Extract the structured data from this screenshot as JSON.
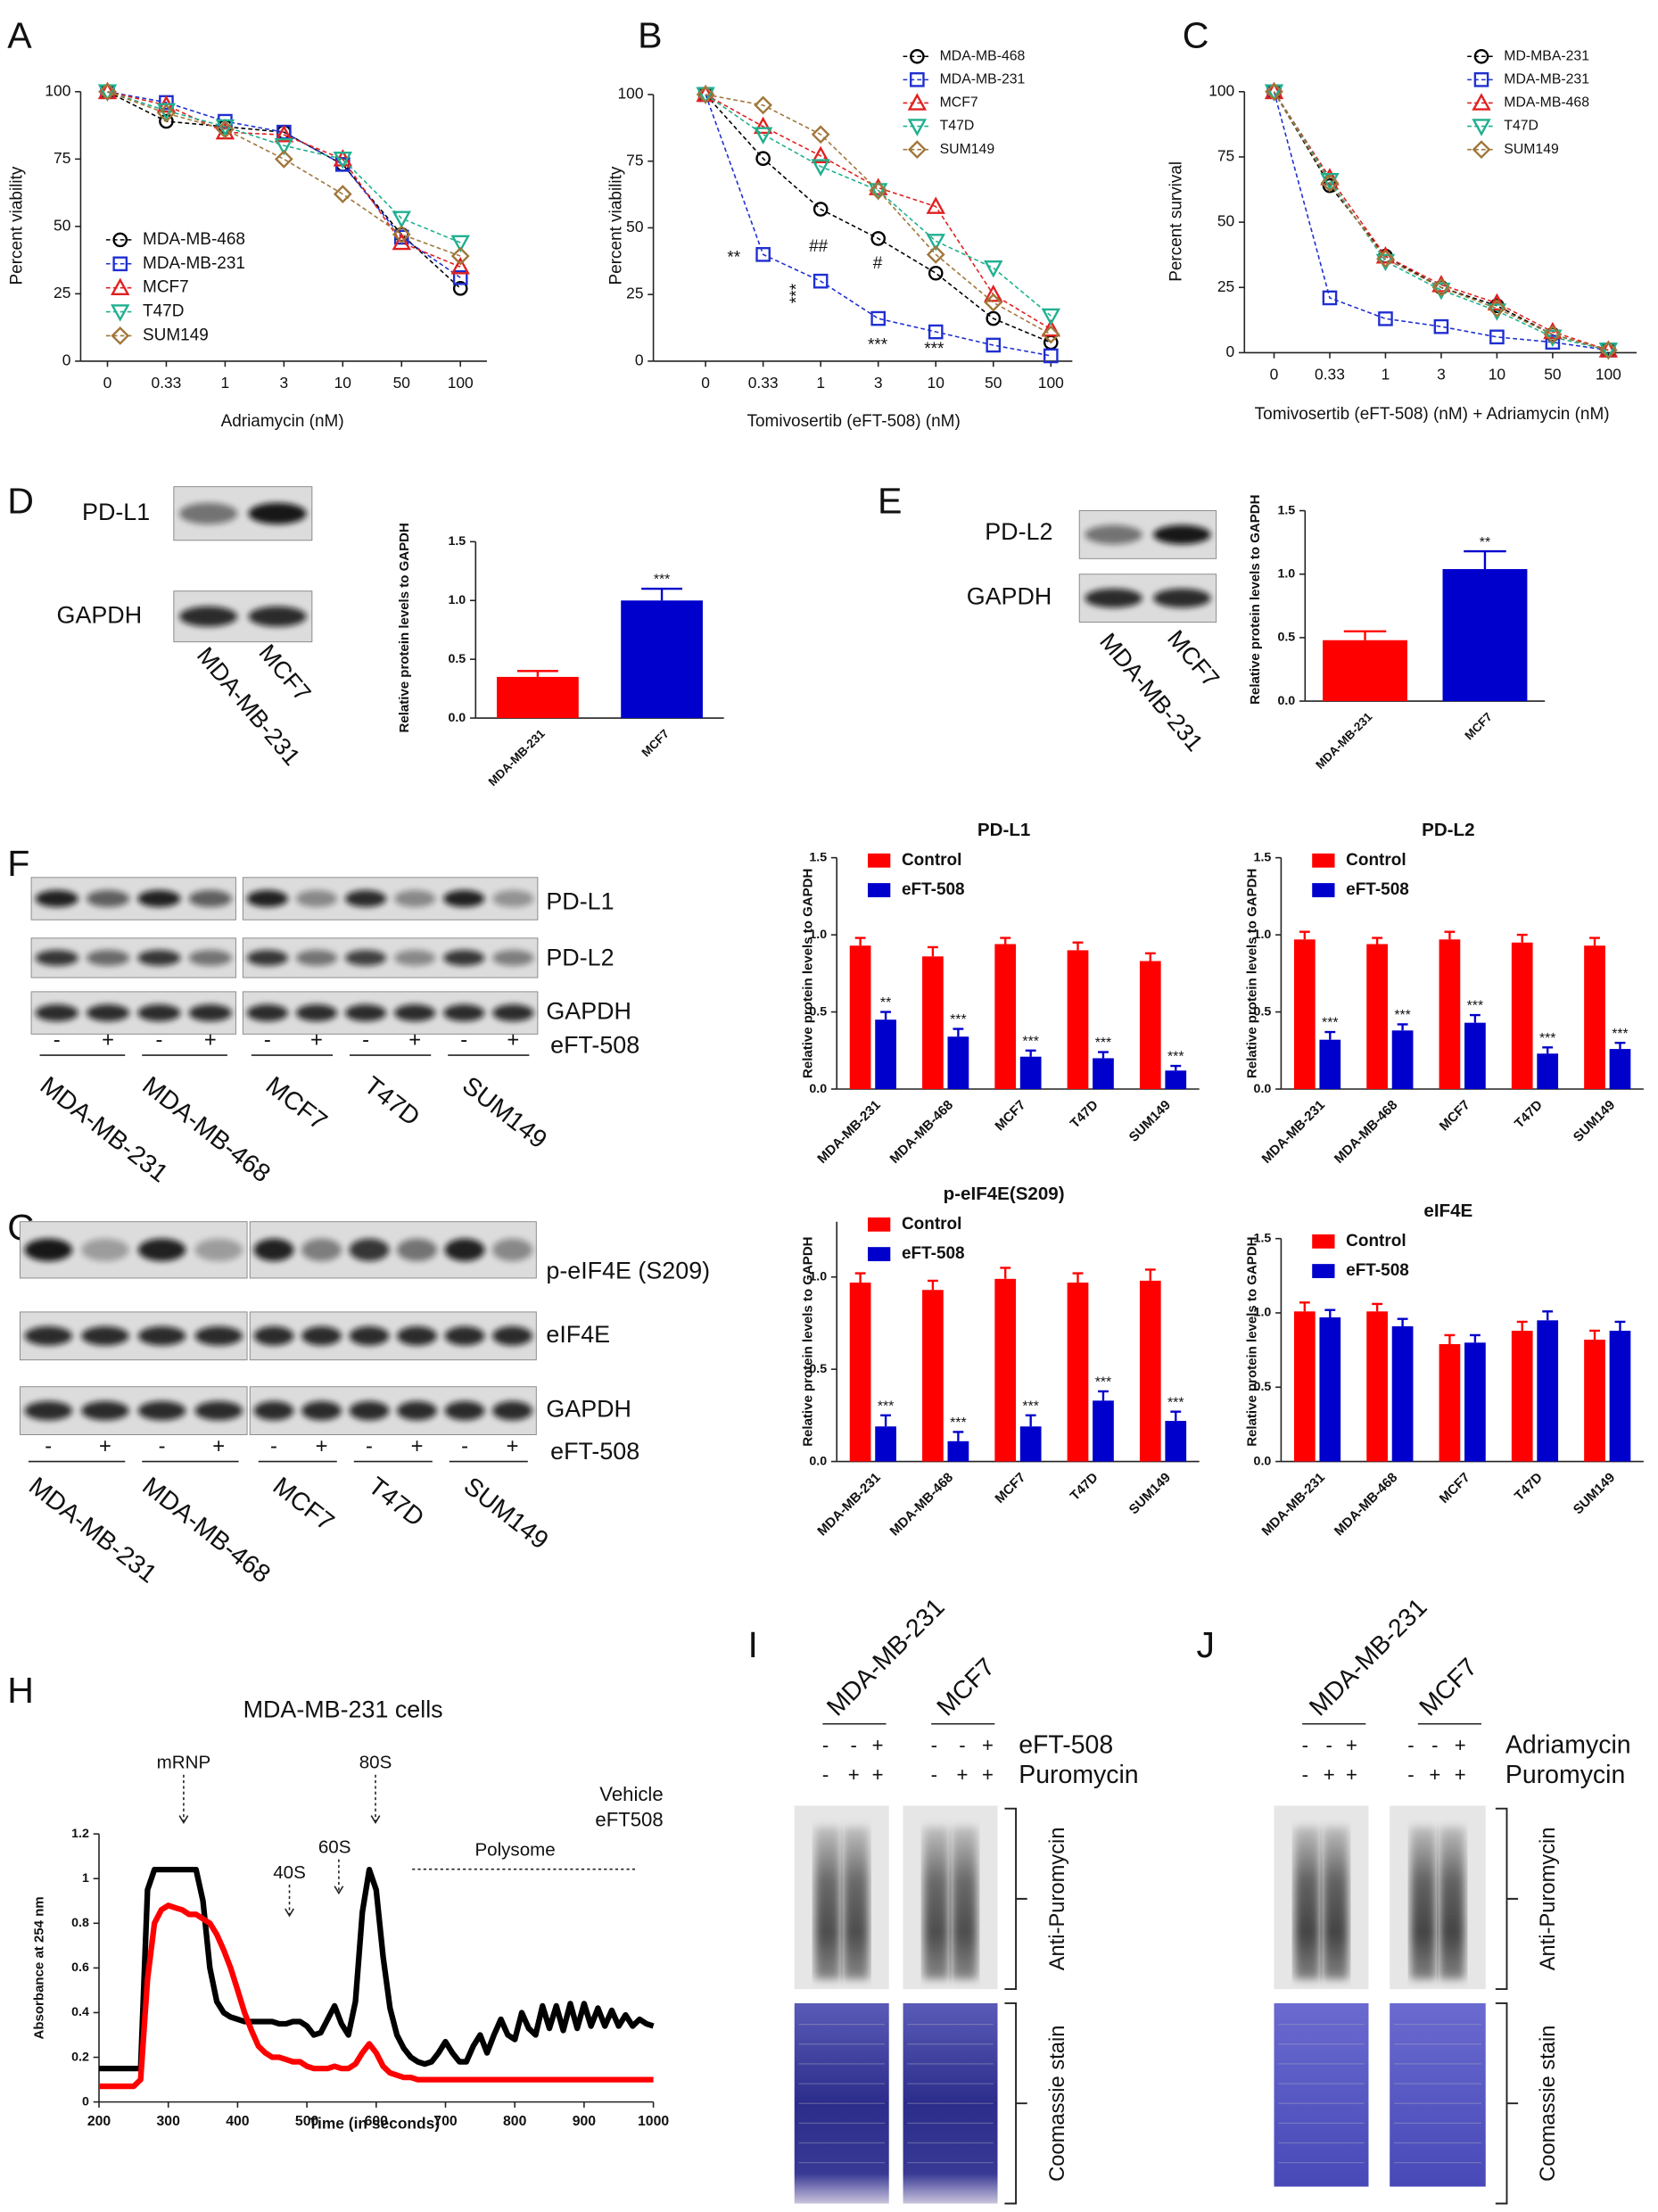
{
  "panel_labels": [
    "A",
    "B",
    "C",
    "D",
    "E",
    "F",
    "G",
    "H",
    "I",
    "J"
  ],
  "chart_data": [
    {
      "type": "line",
      "ylabel": "Percent viability",
      "xlabel": "Adriamycin (nM)",
      "categories": [
        "0",
        "0.33",
        "1",
        "3",
        "10",
        "50",
        "100"
      ],
      "ylim": [
        0,
        100
      ],
      "yticks": [
        0,
        25,
        50,
        75,
        100
      ],
      "series": [
        {
          "name": "MDA-MB-468",
          "color": "#000000",
          "values": [
            100,
            89,
            87,
            85,
            73,
            47,
            27
          ]
        },
        {
          "name": "MDA-MB-231",
          "color": "#1f2fd0",
          "values": [
            100,
            96,
            89,
            85,
            73,
            46,
            31
          ]
        },
        {
          "name": "MCF7",
          "color": "#e02020",
          "values": [
            100,
            95,
            85,
            84,
            75,
            44,
            35
          ]
        },
        {
          "name": "T47D",
          "color": "#1fb08f",
          "values": [
            100,
            93,
            87,
            80,
            75,
            53,
            44
          ]
        },
        {
          "name": "SUM149",
          "color": "#a0763a",
          "values": [
            100,
            92,
            86,
            75,
            62,
            47,
            39
          ]
        }
      ]
    },
    {
      "type": "line",
      "ylabel": "Percent viability",
      "xlabel": "Tomivosertib (eFT-508) (nM)",
      "categories": [
        "0",
        "0.33",
        "1",
        "3",
        "10",
        "50",
        "100"
      ],
      "ylim": [
        0,
        100
      ],
      "yticks": [
        0,
        25,
        50,
        75,
        100
      ],
      "series": [
        {
          "name": "MDA-MB-468",
          "color": "#000000",
          "values": [
            100,
            76,
            57,
            46,
            33,
            16,
            7
          ]
        },
        {
          "name": "MDA-MB-231",
          "color": "#1f2fd0",
          "values": [
            100,
            40,
            30,
            16,
            11,
            6,
            2
          ]
        },
        {
          "name": "MCF7",
          "color": "#e02020",
          "values": [
            100,
            88,
            77,
            65,
            58,
            25,
            12
          ]
        },
        {
          "name": "T47D",
          "color": "#1fb08f",
          "values": [
            100,
            85,
            73,
            64,
            45,
            35,
            17
          ]
        },
        {
          "name": "SUM149",
          "color": "#a0763a",
          "values": [
            100,
            96,
            85,
            64,
            40,
            22,
            10
          ]
        }
      ],
      "annotations": [
        "**",
        "##",
        "#",
        "***",
        "***",
        "***"
      ]
    },
    {
      "type": "line",
      "ylabel": "Percent survival",
      "xlabel": "Tomivosertib (eFT-508) (nM) +  Adriamycin (nM)",
      "categories": [
        "0",
        "0.33",
        "1",
        "3",
        "10",
        "50",
        "100"
      ],
      "ylim": [
        0,
        100
      ],
      "yticks": [
        0,
        25,
        50,
        75,
        100
      ],
      "series": [
        {
          "name": "MD-MBA-231",
          "color": "#000000",
          "values": [
            100,
            64,
            37,
            25,
            18,
            7,
            1
          ]
        },
        {
          "name": "MDA-MB-231",
          "color": "#1f2fd0",
          "values": [
            100,
            21,
            13,
            10,
            6,
            4,
            1
          ]
        },
        {
          "name": "MDA-MB-468",
          "color": "#e02020",
          "values": [
            100,
            67,
            37,
            26,
            19,
            8,
            1
          ]
        },
        {
          "name": "T47D",
          "color": "#1fb08f",
          "values": [
            100,
            66,
            35,
            24,
            16,
            6,
            1
          ]
        },
        {
          "name": "SUM149",
          "color": "#a0763a",
          "values": [
            100,
            65,
            36,
            25,
            17,
            7,
            1
          ]
        }
      ]
    },
    {
      "type": "bar",
      "ylabel": "Relative protein levels to GAPDH",
      "categories": [
        "MDA-MB-231",
        "MCF7"
      ],
      "values": [
        0.35,
        1.0
      ],
      "errors": [
        0.05,
        0.1
      ],
      "colors": [
        "#ff0000",
        "#0000cc"
      ],
      "ylim": [
        0,
        1.5
      ],
      "yticks": [
        {
          "value": 0,
          "label": "0.0"
        },
        0.5,
        {
          "value": 1,
          "label": "1.0"
        },
        1.5
      ],
      "annotations": [
        "***"
      ]
    },
    {
      "type": "bar",
      "ylabel": "Relative protein levels to GAPDH",
      "categories": [
        "MDA-MB-231",
        "MCF7"
      ],
      "values": [
        0.48,
        1.04
      ],
      "errors": [
        0.07,
        0.14
      ],
      "colors": [
        "#ff0000",
        "#0000cc"
      ],
      "ylim": [
        0,
        1.5
      ],
      "yticks": [
        {
          "value": 0,
          "label": "0.0"
        },
        0.5,
        {
          "value": 1,
          "label": "1.0"
        },
        1.5
      ],
      "annotations": [
        "**"
      ]
    },
    {
      "type": "bar",
      "title": "PD-L1",
      "ylabel": "Relative protein levels to GAPDH",
      "categories": [
        "MDA-MB-231",
        "MDA-MB-468",
        "MCF7",
        "T47D",
        "SUM149"
      ],
      "ylim": [
        0,
        1.5
      ],
      "yticks": [
        {
          "value": 0,
          "label": "0.0"
        },
        0.5,
        {
          "value": 1,
          "label": "1.0"
        },
        1.5
      ],
      "series": [
        {
          "name": "Control",
          "color": "#ff0000",
          "values": [
            0.93,
            0.86,
            0.94,
            0.9,
            0.83
          ],
          "errors": [
            0.05,
            0.06,
            0.04,
            0.05,
            0.05
          ]
        },
        {
          "name": "eFT-508",
          "color": "#0000cc",
          "values": [
            0.45,
            0.34,
            0.21,
            0.2,
            0.12
          ],
          "errors": [
            0.05,
            0.05,
            0.04,
            0.04,
            0.03
          ]
        }
      ],
      "annotations": [
        "**",
        "***",
        "***",
        "***",
        "***"
      ]
    },
    {
      "type": "bar",
      "title": "PD-L2",
      "ylabel": "Relative protein levels to GAPDH",
      "categories": [
        "MDA-MB-231",
        "MDA-MB-468",
        "MCF7",
        "T47D",
        "SUM149"
      ],
      "ylim": [
        0,
        1.5
      ],
      "yticks": [
        {
          "value": 0,
          "label": "0.0"
        },
        0.5,
        {
          "value": 1,
          "label": "1.0"
        },
        1.5
      ],
      "series": [
        {
          "name": "Control",
          "color": "#ff0000",
          "values": [
            0.97,
            0.94,
            0.97,
            0.95,
            0.93
          ],
          "errors": [
            0.05,
            0.04,
            0.05,
            0.05,
            0.05
          ]
        },
        {
          "name": "eFT-508",
          "color": "#0000cc",
          "values": [
            0.32,
            0.38,
            0.43,
            0.23,
            0.26
          ],
          "errors": [
            0.05,
            0.04,
            0.05,
            0.04,
            0.04
          ]
        }
      ],
      "annotations": [
        "***",
        "***",
        "***",
        "***",
        "***"
      ]
    },
    {
      "type": "bar",
      "title": "p-eIF4E(S209)",
      "ylabel": "Relative protein levels to GAPDH",
      "categories": [
        "MDA-MB-231",
        "MDA-MB-468",
        "MCF7",
        "T47D",
        "SUM149"
      ],
      "ylim": [
        0,
        1.3
      ],
      "yticks": [
        {
          "value": 0,
          "label": "0.0"
        },
        0.5,
        {
          "value": 1,
          "label": "1.0"
        }
      ],
      "series": [
        {
          "name": "Control",
          "color": "#ff0000",
          "values": [
            0.97,
            0.93,
            0.99,
            0.97,
            0.98
          ],
          "errors": [
            0.05,
            0.05,
            0.06,
            0.05,
            0.06
          ]
        },
        {
          "name": "eFT-508",
          "color": "#0000cc",
          "values": [
            0.19,
            0.11,
            0.19,
            0.33,
            0.22
          ],
          "errors": [
            0.06,
            0.05,
            0.06,
            0.05,
            0.05
          ]
        }
      ],
      "annotations": [
        "***",
        "***",
        "***",
        "***",
        "***"
      ]
    },
    {
      "type": "bar",
      "title": "eIF4E",
      "ylabel": "Relative protein levels to GAPDH",
      "categories": [
        "MDA-MB-231",
        "MDA-MB-468",
        "MCF7",
        "T47D",
        "SUM149"
      ],
      "ylim": [
        0,
        1.5
      ],
      "yticks": [
        {
          "value": 0,
          "label": "0.0"
        },
        0.5,
        {
          "value": 1,
          "label": "1.0"
        },
        1.5
      ],
      "series": [
        {
          "name": "Control",
          "color": "#ff0000",
          "values": [
            1.01,
            1.01,
            0.79,
            0.88,
            0.82
          ],
          "errors": [
            0.06,
            0.05,
            0.06,
            0.06,
            0.06
          ]
        },
        {
          "name": "eFT-508",
          "color": "#0000cc",
          "values": [
            0.97,
            0.91,
            0.8,
            0.95,
            0.88
          ],
          "errors": [
            0.05,
            0.05,
            0.05,
            0.06,
            0.06
          ]
        }
      ]
    },
    {
      "type": "line",
      "title": "MDA-MB-231 cells",
      "xlabel": "Time (in seconds)",
      "ylabel": "Absorbance at 254 nm",
      "xlim": [
        200,
        1000
      ],
      "ylim": [
        0,
        1.2
      ],
      "xticks": [
        200,
        300,
        400,
        500,
        600,
        700,
        800,
        900,
        1000
      ],
      "yticks": [
        0,
        0.2,
        0.4,
        0.6,
        0.8,
        1,
        1.2
      ],
      "x": [
        200,
        210,
        220,
        230,
        240,
        250,
        260,
        270,
        280,
        290,
        300,
        310,
        320,
        330,
        340,
        350,
        360,
        370,
        380,
        390,
        400,
        410,
        420,
        430,
        440,
        450,
        460,
        470,
        480,
        490,
        500,
        510,
        520,
        530,
        540,
        550,
        560,
        570,
        580,
        590,
        600,
        610,
        620,
        630,
        640,
        650,
        660,
        670,
        680,
        690,
        700,
        710,
        720,
        730,
        740,
        750,
        760,
        770,
        780,
        790,
        800,
        810,
        820,
        830,
        840,
        850,
        860,
        870,
        880,
        890,
        900,
        910,
        920,
        930,
        940,
        950,
        960,
        970,
        980,
        990,
        1000
      ],
      "series": [
        {
          "name": "Vehicle",
          "color": "#000000",
          "values": [
            0.15,
            0.15,
            0.15,
            0.15,
            0.15,
            0.15,
            0.15,
            0.95,
            1.04,
            1.04,
            1.04,
            1.04,
            1.04,
            1.04,
            1.04,
            0.9,
            0.6,
            0.45,
            0.4,
            0.38,
            0.37,
            0.36,
            0.36,
            0.36,
            0.36,
            0.36,
            0.35,
            0.35,
            0.36,
            0.36,
            0.34,
            0.3,
            0.31,
            0.37,
            0.43,
            0.35,
            0.3,
            0.45,
            0.85,
            1.04,
            0.95,
            0.65,
            0.42,
            0.3,
            0.24,
            0.2,
            0.18,
            0.17,
            0.18,
            0.22,
            0.27,
            0.22,
            0.18,
            0.18,
            0.25,
            0.3,
            0.22,
            0.3,
            0.37,
            0.3,
            0.28,
            0.4,
            0.33,
            0.3,
            0.43,
            0.33,
            0.43,
            0.32,
            0.44,
            0.33,
            0.44,
            0.34,
            0.42,
            0.34,
            0.41,
            0.34,
            0.39,
            0.34,
            0.37,
            0.35,
            0.34
          ]
        },
        {
          "name": "eFT508",
          "color": "#ff0000",
          "values": [
            0.07,
            0.07,
            0.07,
            0.07,
            0.07,
            0.07,
            0.1,
            0.55,
            0.8,
            0.86,
            0.88,
            0.87,
            0.86,
            0.84,
            0.84,
            0.82,
            0.8,
            0.75,
            0.68,
            0.6,
            0.5,
            0.4,
            0.32,
            0.25,
            0.22,
            0.2,
            0.2,
            0.19,
            0.18,
            0.18,
            0.16,
            0.15,
            0.15,
            0.15,
            0.16,
            0.15,
            0.15,
            0.17,
            0.22,
            0.26,
            0.22,
            0.16,
            0.13,
            0.12,
            0.11,
            0.11,
            0.1,
            0.1,
            0.1,
            0.1,
            0.1,
            0.1,
            0.1,
            0.1,
            0.1,
            0.1,
            0.1,
            0.1,
            0.1,
            0.1,
            0.1,
            0.1,
            0.1,
            0.1,
            0.1,
            0.1,
            0.1,
            0.1,
            0.1,
            0.1,
            0.1,
            0.1,
            0.1,
            0.1,
            0.1,
            0.1,
            0.1,
            0.1,
            0.1,
            0.1,
            0.1
          ]
        }
      ],
      "annotations": [
        "mRNP",
        "40S",
        "60S",
        "80S",
        "Polysome"
      ]
    }
  ],
  "blots": {
    "D": {
      "rows": [
        "PD-L1",
        "GAPDH"
      ],
      "lanes": [
        "MDA-MB-231",
        "MCF7"
      ]
    },
    "E": {
      "rows": [
        "PD-L2",
        "GAPDH"
      ],
      "lanes": [
        "MDA-MB-231",
        "MCF7"
      ]
    },
    "F": {
      "rows": [
        "PD-L1",
        "PD-L2",
        "GAPDH"
      ],
      "treatment": "eFT-508",
      "signs": [
        "-",
        "+",
        "-",
        "+",
        "-",
        "+",
        "-",
        "+",
        "-",
        "+"
      ],
      "lanes": [
        "MDA-MB-231",
        "MDA-MB-468",
        "MCF7",
        "T47D",
        "SUM149"
      ]
    },
    "G": {
      "rows": [
        "p-eIF4E (S209)",
        "eIF4E",
        "GAPDH"
      ],
      "treatment": "eFT-508",
      "signs": [
        "-",
        "+",
        "-",
        "+",
        "-",
        "+",
        "-",
        "+",
        "-",
        "+"
      ],
      "lanes": [
        "MDA-MB-231",
        "MDA-MB-468",
        "MCF7",
        "T47D",
        "SUM149"
      ]
    },
    "I": {
      "lanes": [
        "MDA-MB-231",
        "MCF7"
      ],
      "conditions": [
        {
          "label": "eFT-508",
          "signs": [
            "-",
            "-",
            "+",
            "-",
            "-",
            "+"
          ]
        },
        {
          "label": "Puromycin",
          "signs": [
            "-",
            "+",
            "+",
            "-",
            "+",
            "+"
          ]
        }
      ],
      "side_labels": [
        "Anti-Puromycin",
        "Coomassie stain"
      ]
    },
    "J": {
      "lanes": [
        "MDA-MB-231",
        "MCF7"
      ],
      "conditions": [
        {
          "label": "Adriamycin",
          "signs": [
            "-",
            "-",
            "+",
            "-",
            "-",
            "+"
          ]
        },
        {
          "label": "Puromycin",
          "signs": [
            "-",
            "+",
            "+",
            "-",
            "+",
            "+"
          ]
        }
      ],
      "side_labels": [
        "Anti-Puromycin",
        "Coomassie stain"
      ]
    }
  }
}
